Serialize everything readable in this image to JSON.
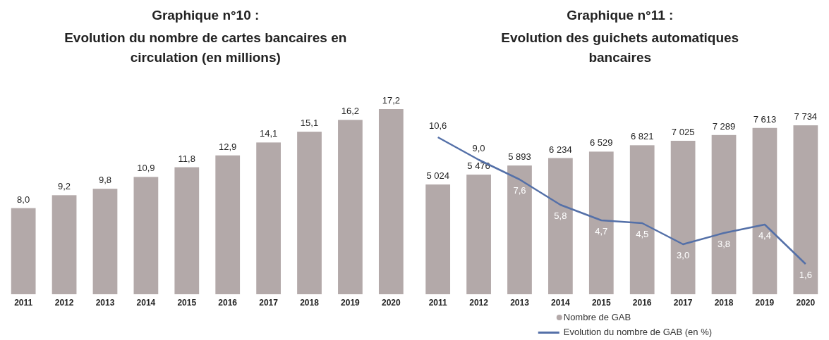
{
  "chart_data": [
    {
      "type": "bar",
      "title": "Graphique n°10 :",
      "subtitle": "Evolution du nombre de cartes bancaires en circulation (en millions)",
      "categories": [
        "2011",
        "2012",
        "2013",
        "2014",
        "2015",
        "2016",
        "2017",
        "2018",
        "2019",
        "2020"
      ],
      "series": [
        {
          "color": "#b3a9a9",
          "values": [
            8.0,
            9.2,
            9.8,
            10.9,
            11.8,
            12.9,
            14.1,
            15.1,
            16.2,
            17.2
          ],
          "value_labels": [
            "8,0",
            "9,2",
            "9,8",
            "10,9",
            "11,8",
            "12,9",
            "14,1",
            "15,1",
            "16,2",
            "17,2"
          ]
        }
      ],
      "legend": false
    },
    {
      "type": "bar",
      "title": "Graphique n°11 :",
      "subtitle": "Evolution des guichets automatiques bancaires",
      "categories": [
        "2011",
        "2012",
        "2013",
        "2014",
        "2015",
        "2016",
        "2017",
        "2018",
        "2019",
        "2020"
      ],
      "series": [
        {
          "name": "Nombre de GAB",
          "color": "#b3a9a9",
          "values": [
            5024,
            5476,
            5893,
            6234,
            6529,
            6821,
            7025,
            7289,
            7613,
            7734
          ],
          "value_labels": [
            "5 024",
            "5 476",
            "5 893",
            "6 234",
            "6 529",
            "6 821",
            "7 025",
            "7 289",
            "7 613",
            "7 734"
          ]
        },
        {
          "name": "Evolution du nombre de GAB (en %)",
          "type": "line",
          "axis": "y2",
          "color": "#5470a8",
          "values": [
            10.6,
            9.0,
            7.6,
            5.8,
            4.7,
            4.5,
            3.0,
            3.8,
            4.4,
            1.6
          ],
          "value_labels": [
            "10,6",
            "9,0",
            "7,6",
            "5,8",
            "4,7",
            "4,5",
            "3,0",
            "3,8",
            "4,4",
            "1,6"
          ]
        }
      ],
      "legend": "bottom"
    }
  ]
}
